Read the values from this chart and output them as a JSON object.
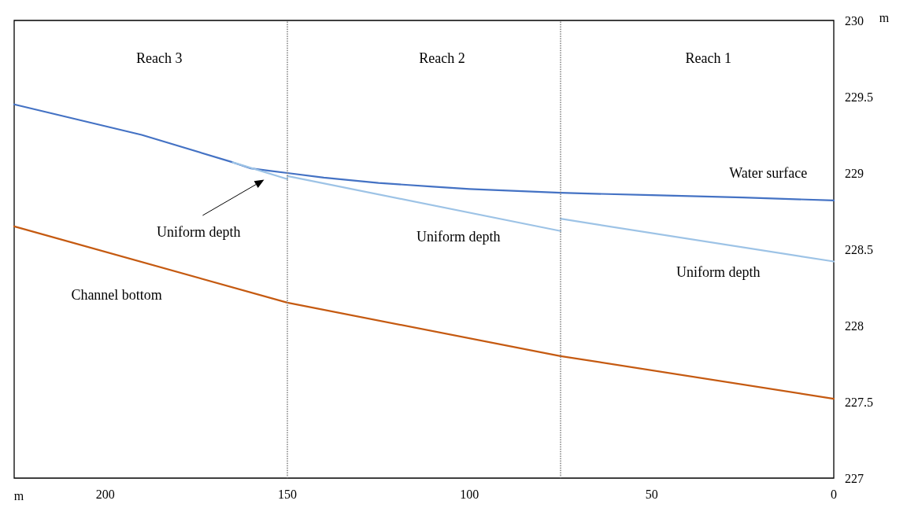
{
  "chart_data": {
    "type": "line",
    "xlabel": "m",
    "ylabel": "m",
    "xlim": [
      225,
      0
    ],
    "xticks": [
      200,
      150,
      100,
      50,
      0
    ],
    "ylim": [
      227,
      230
    ],
    "yticks": [
      227,
      227.5,
      228,
      228.5,
      229,
      229.5,
      230
    ],
    "grid": false,
    "marker": "none",
    "line_style": "solid",
    "series": [
      {
        "color": "#4472c4",
        "x": [
          225,
          190,
          165,
          160,
          155,
          150,
          140,
          125,
          110,
          100,
          75,
          50,
          25,
          0
        ],
        "values": [
          229.45,
          229.25,
          229.07,
          229.03,
          229.015,
          229.0,
          228.97,
          228.935,
          228.91,
          228.895,
          228.87,
          228.855,
          228.84,
          228.82
        ]
      },
      {
        "color": "#9dc3e6",
        "x": [
          165,
          150
        ],
        "values": [
          229.07,
          228.96
        ]
      },
      {
        "color": "#9dc3e6",
        "x": [
          150,
          75
        ],
        "values": [
          228.98,
          228.62
        ]
      },
      {
        "color": "#9dc3e6",
        "x": [
          75,
          0
        ],
        "values": [
          228.7,
          228.42
        ]
      },
      {
        "color": "#c55a11",
        "x": [
          225,
          150,
          75,
          0
        ],
        "values": [
          228.65,
          228.15,
          227.8,
          227.52
        ]
      }
    ],
    "ref_lines": [
      {
        "axis": "x",
        "value": 150,
        "color": "#7f7f7f",
        "line_style": "dotted"
      },
      {
        "axis": "x",
        "value": 75,
        "color": "#7f7f7f",
        "line_style": "dotted"
      }
    ],
    "annotations": [
      "Reach 3",
      "Reach 2",
      "Reach 1",
      "Water surface",
      "Uniform depth",
      "Uniform depth",
      "Uniform depth",
      "Channel bottom"
    ]
  }
}
